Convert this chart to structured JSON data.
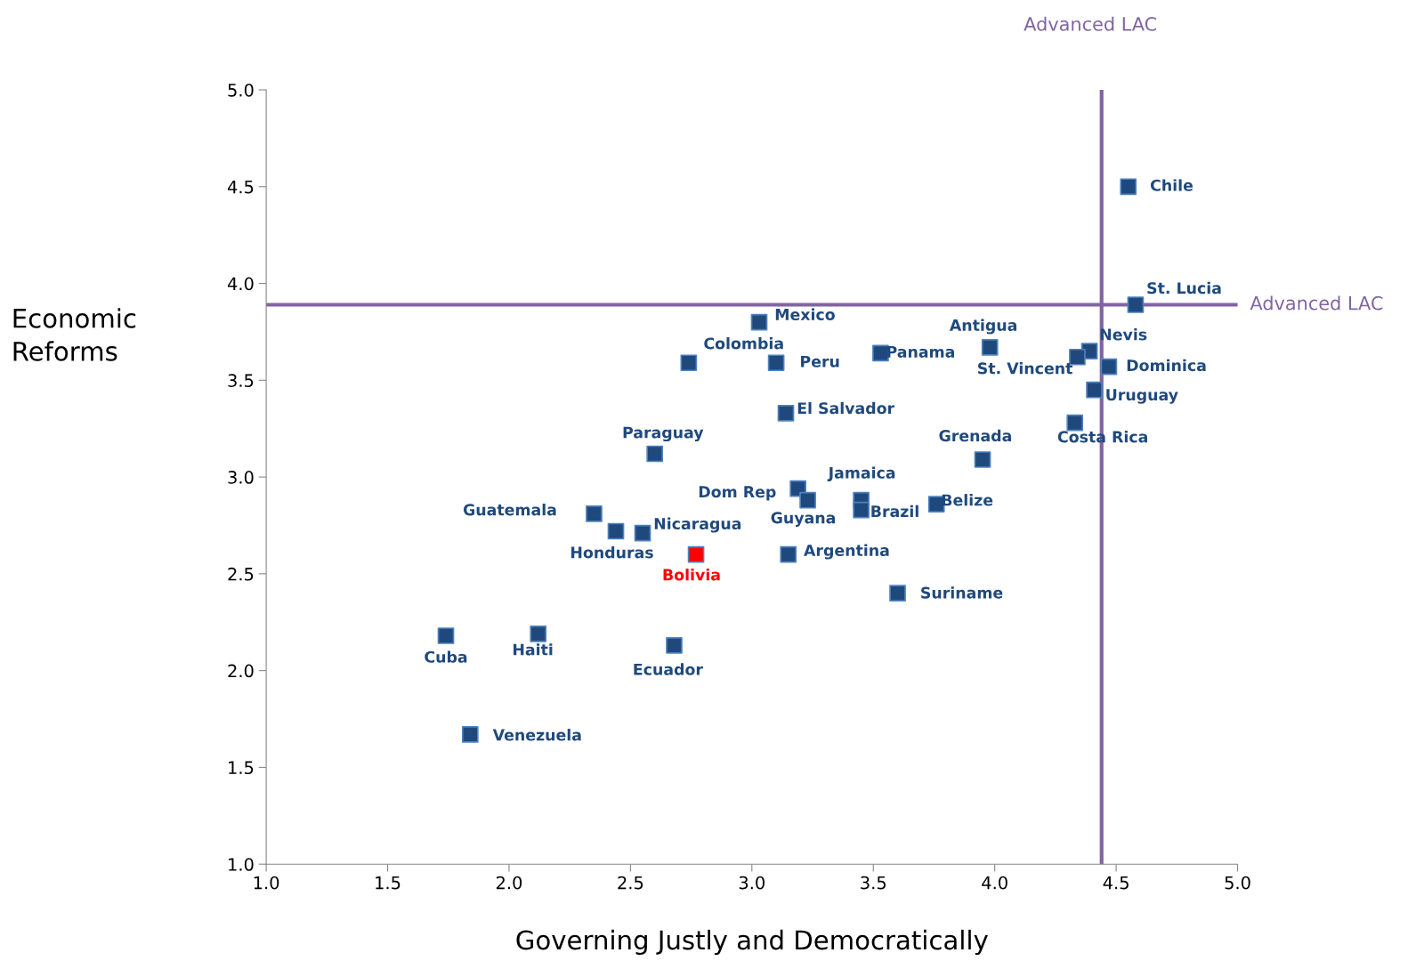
{
  "chart_data": {
    "type": "scatter",
    "xlabel": "Governing Justly and Democratically",
    "ylabel": "Economic\nReforms",
    "xlim": [
      1.0,
      5.0
    ],
    "ylim": [
      1.0,
      5.0
    ],
    "xticks": [
      {
        "value": 1.0,
        "label": "1.0"
      },
      {
        "value": 1.5,
        "label": "1.5"
      },
      {
        "value": 2.0,
        "label": "2.0"
      },
      {
        "value": 2.5,
        "label": "2.5"
      },
      {
        "value": 3.0,
        "label": "3.0"
      },
      {
        "value": 3.5,
        "label": "3.5"
      },
      {
        "value": 4.0,
        "label": "4.0"
      },
      {
        "value": 4.5,
        "label": "4.5"
      },
      {
        "value": 5.0,
        "label": "5.0"
      }
    ],
    "yticks": [
      {
        "value": 1.0,
        "label": "1.0"
      },
      {
        "value": 1.5,
        "label": "1.5"
      },
      {
        "value": 2.0,
        "label": "2.0"
      },
      {
        "value": 2.5,
        "label": "2.5"
      },
      {
        "value": 3.0,
        "label": "3.0"
      },
      {
        "value": 3.5,
        "label": "3.5"
      },
      {
        "value": 4.0,
        "label": "4.0"
      },
      {
        "value": 4.5,
        "label": "4.5"
      },
      {
        "value": 5.0,
        "label": "5.0"
      }
    ],
    "grid": false,
    "marker": "square",
    "series": [
      {
        "x": [
          4.55,
          4.58,
          3.03,
          2.74,
          3.1,
          3.53,
          3.98,
          4.39,
          4.34,
          4.47,
          4.41,
          4.33,
          3.14,
          2.6,
          3.95,
          3.19,
          3.23,
          3.45,
          3.45,
          3.76,
          2.35,
          2.44,
          2.55,
          2.77,
          3.15,
          3.6,
          1.74,
          2.12,
          2.68,
          1.84
        ],
        "values": [
          4.5,
          3.89,
          3.8,
          3.59,
          3.59,
          3.64,
          3.67,
          3.65,
          3.62,
          3.57,
          3.45,
          3.28,
          3.33,
          3.12,
          3.09,
          2.94,
          2.88,
          2.88,
          2.83,
          2.86,
          2.81,
          2.72,
          2.71,
          2.6,
          2.6,
          2.4,
          2.18,
          2.19,
          2.13,
          1.67
        ],
        "colors": [
          "#1f497d",
          "#1f497d",
          "#1f497d",
          "#1f497d",
          "#1f497d",
          "#1f497d",
          "#1f497d",
          "#1f497d",
          "#1f497d",
          "#1f497d",
          "#1f497d",
          "#1f497d",
          "#1f497d",
          "#1f497d",
          "#1f497d",
          "#1f497d",
          "#1f497d",
          "#1f497d",
          "#1f497d",
          "#1f497d",
          "#1f497d",
          "#1f497d",
          "#1f497d",
          "#ff0000",
          "#1f497d",
          "#1f497d",
          "#1f497d",
          "#1f497d",
          "#1f497d",
          "#1f497d"
        ]
      }
    ],
    "ref_lines": [
      {
        "axis": "x",
        "value": 4.44,
        "label": "Advanced LAC",
        "color": "#8064a2"
      },
      {
        "axis": "y",
        "value": 3.89,
        "label": "Advanced LAC",
        "color": "#8064a2"
      }
    ],
    "annotations": [
      {
        "text": "Chile",
        "x": 4.55,
        "y": 4.5
      },
      {
        "text": "St. Lucia",
        "x": 4.58,
        "y": 3.89
      },
      {
        "text": "Mexico",
        "x": 3.03,
        "y": 3.8
      },
      {
        "text": "Colombia",
        "x": 2.74,
        "y": 3.59
      },
      {
        "text": "Peru",
        "x": 3.1,
        "y": 3.59
      },
      {
        "text": "Panama",
        "x": 3.53,
        "y": 3.64
      },
      {
        "text": "Antigua",
        "x": 3.98,
        "y": 3.67
      },
      {
        "text": "Nevis",
        "x": 4.39,
        "y": 3.65
      },
      {
        "text": "St. Vincent",
        "x": 4.34,
        "y": 3.62
      },
      {
        "text": "Dominica",
        "x": 4.47,
        "y": 3.57
      },
      {
        "text": "Uruguay",
        "x": 4.41,
        "y": 3.45
      },
      {
        "text": "Costa Rica",
        "x": 4.33,
        "y": 3.28
      },
      {
        "text": "El Salvador",
        "x": 3.14,
        "y": 3.33
      },
      {
        "text": "Paraguay",
        "x": 2.6,
        "y": 3.12
      },
      {
        "text": "Grenada",
        "x": 3.95,
        "y": 3.09
      },
      {
        "text": "Dom Rep",
        "x": 3.19,
        "y": 2.94
      },
      {
        "text": "Guyana",
        "x": 3.23,
        "y": 2.88
      },
      {
        "text": "Jamaica",
        "x": 3.45,
        "y": 2.88
      },
      {
        "text": "Brazil",
        "x": 3.45,
        "y": 2.83
      },
      {
        "text": "Belize",
        "x": 3.76,
        "y": 2.86
      },
      {
        "text": "Guatemala",
        "x": 2.35,
        "y": 2.81
      },
      {
        "text": "Honduras",
        "x": 2.44,
        "y": 2.72
      },
      {
        "text": "Nicaragua",
        "x": 2.55,
        "y": 2.71
      },
      {
        "text": "Bolivia",
        "x": 2.77,
        "y": 2.6
      },
      {
        "text": "Argentina",
        "x": 3.15,
        "y": 2.6
      },
      {
        "text": "Suriname",
        "x": 3.6,
        "y": 2.4
      },
      {
        "text": "Cuba",
        "x": 1.74,
        "y": 2.18
      },
      {
        "text": "Haiti",
        "x": 2.12,
        "y": 2.19
      },
      {
        "text": "Ecuador",
        "x": 2.68,
        "y": 2.13
      },
      {
        "text": "Venezuela",
        "x": 1.84,
        "y": 1.67
      }
    ]
  }
}
